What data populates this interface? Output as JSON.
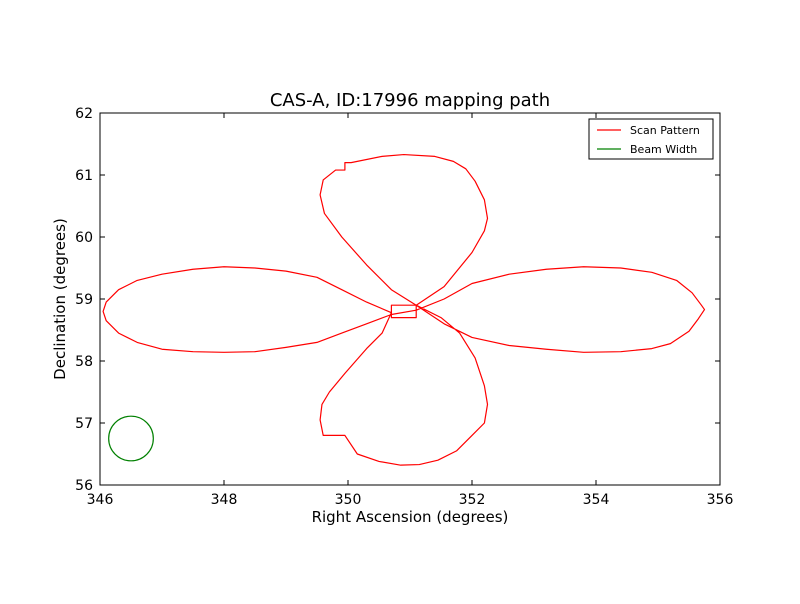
{
  "chart_data": {
    "type": "line",
    "title": "CAS-A, ID:17996 mapping path",
    "xlabel": "Right Ascension (degrees)",
    "ylabel": "Declination (degrees)",
    "xlim": [
      346,
      356
    ],
    "ylim": [
      56,
      62
    ],
    "xticks": [
      346,
      348,
      350,
      352,
      354,
      356
    ],
    "yticks": [
      56,
      57,
      58,
      59,
      60,
      61,
      62
    ],
    "xtick_labels": [
      "346",
      "348",
      "350",
      "352",
      "354",
      "356"
    ],
    "ytick_labels": [
      "56",
      "57",
      "58",
      "59",
      "60",
      "61",
      "62"
    ],
    "grid": false,
    "legend_position": "top-right",
    "series": [
      {
        "name": "Scan Pattern",
        "color": "#ff0000",
        "x": [
          350.7,
          350.7,
          351.1,
          351.1,
          351.55,
          352.0,
          352.2,
          352.25,
          352.2,
          352.05,
          351.9,
          351.7,
          351.4,
          350.9,
          350.55,
          350.05,
          349.95,
          349.95,
          349.8,
          349.6,
          349.55,
          349.62,
          349.9,
          350.3,
          350.7,
          351.1,
          351.55,
          352.0,
          352.6,
          353.2,
          353.8,
          354.4,
          354.9,
          355.2,
          355.5,
          355.65,
          355.75,
          355.7,
          355.55,
          355.3,
          354.9,
          354.4,
          353.8,
          353.2,
          352.6,
          352.0,
          351.55,
          351.1,
          350.7,
          350.3,
          349.9,
          349.5,
          349.0,
          348.5,
          348.0,
          347.5,
          347.0,
          346.6,
          346.3,
          346.1,
          346.05,
          346.1,
          346.3,
          346.6,
          347.0,
          347.5,
          348.0,
          348.5,
          349.0,
          349.5,
          349.9,
          350.3,
          350.7,
          350.55,
          350.3,
          349.95,
          349.7,
          349.58,
          349.55,
          349.6,
          349.7,
          349.95,
          350.15,
          350.5,
          350.85,
          351.15,
          351.45,
          351.75,
          352.0,
          352.2,
          352.25,
          352.2,
          352.05,
          351.8,
          351.5,
          351.1,
          350.7,
          350.7
        ],
        "y": [
          58.9,
          58.7,
          58.7,
          58.9,
          59.2,
          59.75,
          60.1,
          60.3,
          60.6,
          60.9,
          61.1,
          61.22,
          61.3,
          61.33,
          61.3,
          61.2,
          61.2,
          61.08,
          61.08,
          60.92,
          60.68,
          60.38,
          60.0,
          59.55,
          59.15,
          58.9,
          58.6,
          58.38,
          58.25,
          58.19,
          58.14,
          58.15,
          58.2,
          58.28,
          58.48,
          58.68,
          58.83,
          58.9,
          59.1,
          59.3,
          59.43,
          59.5,
          59.52,
          59.48,
          59.4,
          59.25,
          59.0,
          58.82,
          58.75,
          58.6,
          58.45,
          58.3,
          58.22,
          58.15,
          58.14,
          58.15,
          58.19,
          58.3,
          58.45,
          58.65,
          58.8,
          58.95,
          59.15,
          59.3,
          59.4,
          59.48,
          59.52,
          59.5,
          59.45,
          59.35,
          59.15,
          58.95,
          58.78,
          58.45,
          58.2,
          57.8,
          57.5,
          57.3,
          57.05,
          56.8,
          56.8,
          56.8,
          56.5,
          56.38,
          56.32,
          56.33,
          56.4,
          56.55,
          56.8,
          57.0,
          57.3,
          57.6,
          58.05,
          58.45,
          58.7,
          58.9,
          58.9,
          58.7
        ]
      }
    ],
    "beam": {
      "name": "Beam Width",
      "color": "#008000",
      "center_x": 346.5,
      "center_y": 56.75,
      "radius_x": 0.36,
      "radius_y": 0.36
    }
  }
}
